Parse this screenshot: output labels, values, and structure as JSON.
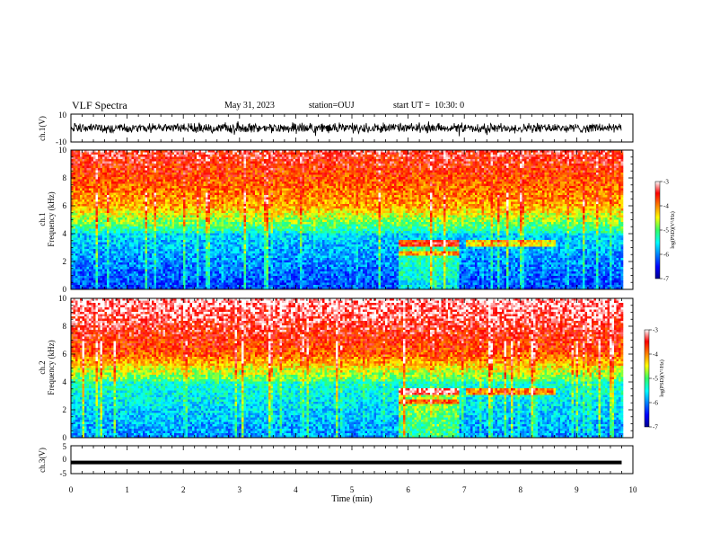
{
  "header": {
    "title": "VLF Spectra",
    "date": "May 31, 2023",
    "station": "station=OUJ",
    "start": "start UT =  10:30: 0"
  },
  "chart_data": [
    {
      "type": "line",
      "name": "ch1-waveform",
      "ylabel": "ch.1(V)",
      "ylim": [
        -10,
        10
      ],
      "ytick_labels": [
        "10",
        "-10"
      ],
      "xlim": [
        0,
        10
      ],
      "baseline_value": 0
    },
    {
      "type": "heatmap",
      "name": "ch1-spectrogram",
      "ylabel": "ch.1\nFrequency (kHz)",
      "ylabel_line1": "ch.1",
      "ylabel_line2": "Frequency (kHz)",
      "ylim": [
        0,
        10
      ],
      "ytick_labels": [
        "0",
        "2",
        "4",
        "6",
        "8",
        "10"
      ],
      "xlim": [
        0,
        9.8
      ],
      "colorbar": {
        "label": "log(PSD)(V²/Hz)",
        "range": [
          -7,
          -3
        ],
        "tick_labels": [
          "-3",
          "-4",
          "-5",
          "-6",
          "-7"
        ]
      },
      "enhanced_interval_min": [
        5.8,
        6.9
      ]
    },
    {
      "type": "heatmap",
      "name": "ch2-spectrogram",
      "ylabel_line1": "ch.2",
      "ylabel_line2": "Frequency (kHz)",
      "ylim": [
        0,
        10
      ],
      "ytick_labels": [
        "0",
        "2",
        "4",
        "6",
        "8",
        "10"
      ],
      "xlim": [
        0,
        9.8
      ],
      "colorbar": {
        "label": "log(PSD)(V²/Hz)",
        "range": [
          -7,
          -3
        ],
        "tick_labels": [
          "-3",
          "-4",
          "-5",
          "-6",
          "-7"
        ]
      },
      "enhanced_interval_min": [
        5.8,
        6.9
      ]
    },
    {
      "type": "line",
      "name": "ch3-waveform",
      "ylabel": "ch.3(V)",
      "ylim": [
        -5,
        5
      ],
      "ytick_labels": [
        "5",
        "0",
        "-5"
      ],
      "xlim": [
        0,
        10
      ],
      "baseline_value": -1
    }
  ],
  "x_axis": {
    "label": "Time (min)",
    "tick_labels": [
      "0",
      "1",
      "2",
      "3",
      "4",
      "5",
      "6",
      "7",
      "8",
      "9",
      "10"
    ]
  }
}
